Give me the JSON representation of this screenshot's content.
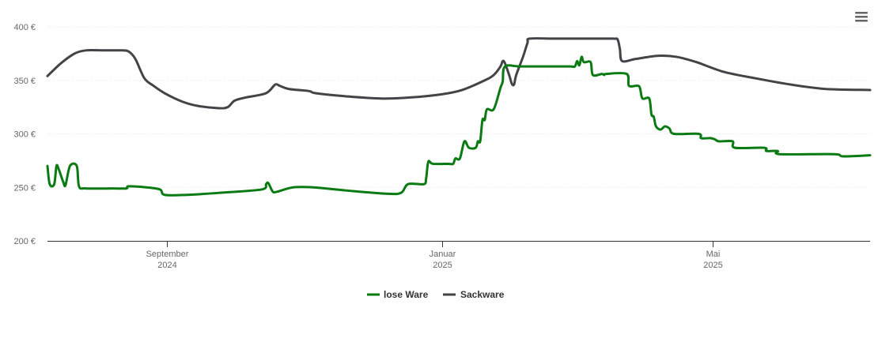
{
  "chart_data": {
    "type": "line",
    "title": "",
    "xlabel": "",
    "ylabel": "",
    "ylim": [
      200,
      400
    ],
    "xlim": [
      "2024-07-10",
      "2025-07-10"
    ],
    "grid": true,
    "legend_position": "bottom",
    "y_ticks": [
      200,
      250,
      300,
      350,
      400
    ],
    "y_tick_labels": [
      "200 €",
      "250 €",
      "300 €",
      "350 €",
      "400 €"
    ],
    "x_ticks": [
      {
        "date": "2024-09-01",
        "line1": "September",
        "line2": "2024"
      },
      {
        "date": "2025-01-01",
        "line1": "Januar",
        "line2": "2025"
      },
      {
        "date": "2025-05-01",
        "line1": "Mai",
        "line2": "2025"
      }
    ],
    "series": [
      {
        "name": "lose Ware",
        "color": "#0a7a12",
        "points": [
          [
            "2024-07-10",
            270
          ],
          [
            "2024-07-11",
            253
          ],
          [
            "2024-07-13",
            253
          ],
          [
            "2024-07-14",
            270
          ],
          [
            "2024-07-15",
            267
          ],
          [
            "2024-07-17",
            255
          ],
          [
            "2024-07-18",
            252
          ],
          [
            "2024-07-20",
            270
          ],
          [
            "2024-07-23",
            270
          ],
          [
            "2024-07-24",
            251
          ],
          [
            "2024-07-27",
            249
          ],
          [
            "2024-08-08",
            249
          ],
          [
            "2024-08-14",
            249
          ],
          [
            "2024-08-15",
            251
          ],
          [
            "2024-08-23",
            250
          ],
          [
            "2024-08-29",
            248
          ],
          [
            "2024-08-31",
            243
          ],
          [
            "2024-09-10",
            243
          ],
          [
            "2024-09-25",
            245
          ],
          [
            "2024-10-13",
            248
          ],
          [
            "2024-10-15",
            253
          ],
          [
            "2024-10-16",
            254
          ],
          [
            "2024-10-18",
            246
          ],
          [
            "2024-10-20",
            246
          ],
          [
            "2024-10-27",
            250
          ],
          [
            "2024-11-05",
            250
          ],
          [
            "2024-11-20",
            247
          ],
          [
            "2024-12-08",
            244
          ],
          [
            "2024-12-14",
            245
          ],
          [
            "2024-12-17",
            253
          ],
          [
            "2024-12-24",
            253
          ],
          [
            "2024-12-25",
            258
          ],
          [
            "2024-12-26",
            274
          ],
          [
            "2024-12-28",
            272
          ],
          [
            "2025-01-04",
            272
          ],
          [
            "2025-01-06",
            272
          ],
          [
            "2025-01-07",
            277
          ],
          [
            "2025-01-09",
            277
          ],
          [
            "2025-01-11",
            293
          ],
          [
            "2025-01-13",
            287
          ],
          [
            "2025-01-16",
            287
          ],
          [
            "2025-01-17",
            293
          ],
          [
            "2025-01-18",
            293
          ],
          [
            "2025-01-19",
            313
          ],
          [
            "2025-01-20",
            313
          ],
          [
            "2025-01-21",
            323
          ],
          [
            "2025-01-24",
            323
          ],
          [
            "2025-01-27",
            343
          ],
          [
            "2025-01-28",
            349
          ],
          [
            "2025-01-29",
            363
          ],
          [
            "2025-02-05",
            363
          ],
          [
            "2025-02-20",
            363
          ],
          [
            "2025-02-27",
            363
          ],
          [
            "2025-03-01",
            363
          ],
          [
            "2025-03-02",
            368
          ],
          [
            "2025-03-03",
            364
          ],
          [
            "2025-03-04",
            372
          ],
          [
            "2025-03-05",
            367
          ],
          [
            "2025-03-08",
            367
          ],
          [
            "2025-03-09",
            355
          ],
          [
            "2025-03-13",
            356
          ],
          [
            "2025-03-14",
            355
          ],
          [
            "2025-03-15",
            356
          ],
          [
            "2025-03-24",
            356
          ],
          [
            "2025-03-25",
            345
          ],
          [
            "2025-03-29",
            345
          ],
          [
            "2025-03-30",
            342
          ],
          [
            "2025-03-31",
            333
          ],
          [
            "2025-04-03",
            333
          ],
          [
            "2025-04-04",
            318
          ],
          [
            "2025-04-05",
            316
          ],
          [
            "2025-04-06",
            307
          ],
          [
            "2025-04-08",
            304
          ],
          [
            "2025-04-10",
            307
          ],
          [
            "2025-04-12",
            305
          ],
          [
            "2025-04-14",
            300
          ],
          [
            "2025-04-25",
            300
          ],
          [
            "2025-04-26",
            296
          ],
          [
            "2025-04-30",
            296
          ],
          [
            "2025-05-02",
            295
          ],
          [
            "2025-05-04",
            293
          ],
          [
            "2025-05-10",
            293
          ],
          [
            "2025-05-11",
            287
          ],
          [
            "2025-05-24",
            287
          ],
          [
            "2025-05-25",
            284
          ],
          [
            "2025-05-30",
            284
          ],
          [
            "2025-05-31",
            281
          ],
          [
            "2025-06-24",
            281
          ],
          [
            "2025-06-28",
            279
          ],
          [
            "2025-07-10",
            280
          ]
        ]
      },
      {
        "name": "Sackware",
        "color": "#434348",
        "points": [
          [
            "2024-07-10",
            354
          ],
          [
            "2024-07-16",
            366
          ],
          [
            "2024-07-22",
            375
          ],
          [
            "2024-07-27",
            378
          ],
          [
            "2024-08-04",
            378
          ],
          [
            "2024-08-12",
            378
          ],
          [
            "2024-08-15",
            377
          ],
          [
            "2024-08-18",
            370
          ],
          [
            "2024-08-22",
            352
          ],
          [
            "2024-08-26",
            345
          ],
          [
            "2024-08-31",
            338
          ],
          [
            "2024-09-08",
            330
          ],
          [
            "2024-09-15",
            326
          ],
          [
            "2024-09-24",
            324
          ],
          [
            "2024-09-28",
            325
          ],
          [
            "2024-10-01",
            331
          ],
          [
            "2024-10-06",
            334
          ],
          [
            "2024-10-15",
            338
          ],
          [
            "2024-10-19",
            346
          ],
          [
            "2024-10-21",
            345
          ],
          [
            "2024-10-25",
            342
          ],
          [
            "2024-11-03",
            340
          ],
          [
            "2024-11-06",
            338
          ],
          [
            "2024-11-20",
            335
          ],
          [
            "2024-12-05",
            333
          ],
          [
            "2024-12-18",
            334
          ],
          [
            "2025-01-01",
            337
          ],
          [
            "2025-01-10",
            341
          ],
          [
            "2025-01-20",
            350
          ],
          [
            "2025-01-24",
            355
          ],
          [
            "2025-01-27",
            363
          ],
          [
            "2025-01-28",
            368
          ],
          [
            "2025-01-29",
            366
          ],
          [
            "2025-01-31",
            354
          ],
          [
            "2025-02-01",
            347
          ],
          [
            "2025-02-02",
            346
          ],
          [
            "2025-02-03",
            355
          ],
          [
            "2025-02-06",
            372
          ],
          [
            "2025-02-08",
            385
          ],
          [
            "2025-02-09",
            389
          ],
          [
            "2025-02-20",
            389
          ],
          [
            "2025-03-05",
            389
          ],
          [
            "2025-03-18",
            389
          ],
          [
            "2025-03-20",
            388
          ],
          [
            "2025-03-21",
            379
          ],
          [
            "2025-03-22",
            368
          ],
          [
            "2025-03-28",
            370
          ],
          [
            "2025-04-07",
            373
          ],
          [
            "2025-04-15",
            372
          ],
          [
            "2025-04-24",
            367
          ],
          [
            "2025-05-06",
            358
          ],
          [
            "2025-05-20",
            352
          ],
          [
            "2025-06-05",
            346
          ],
          [
            "2025-06-20",
            342
          ],
          [
            "2025-07-10",
            341
          ]
        ]
      }
    ]
  },
  "legend": {
    "items": [
      {
        "label": "lose Ware",
        "color": "#0a7a12"
      },
      {
        "label": "Sackware",
        "color": "#434348"
      }
    ]
  },
  "menu": {
    "icon": "hamburger-menu-icon"
  }
}
